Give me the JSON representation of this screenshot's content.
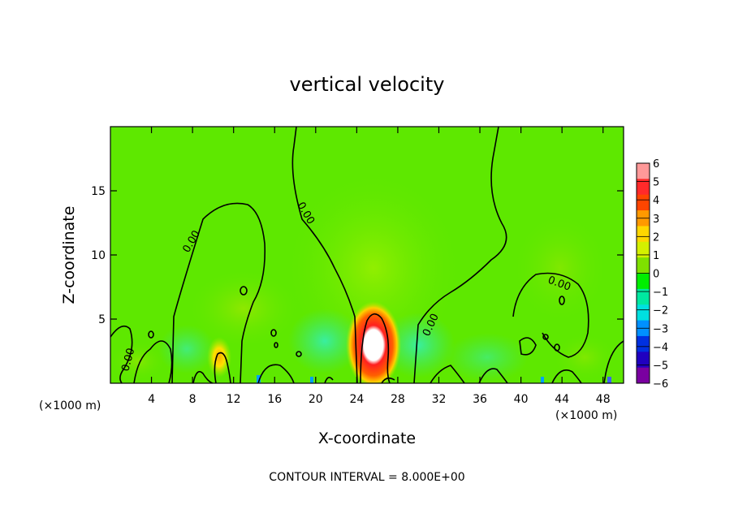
{
  "chart_data": {
    "type": "heatmap",
    "title": "vertical velocity",
    "xlabel": "X-coordinate",
    "ylabel": "Z-coordinate",
    "x_unit_label": "(×1000 m)",
    "x_unit_label_right": "(×1000 m)",
    "footnote": "CONTOUR INTERVAL = 8.000E+00",
    "xlim": [
      0,
      50
    ],
    "ylim": [
      0,
      20
    ],
    "x_ticks": [
      4,
      8,
      12,
      16,
      20,
      24,
      28,
      32,
      36,
      40,
      44,
      48
    ],
    "y_ticks": [
      5,
      10,
      15
    ],
    "colorbar": {
      "levels": [
        6,
        5,
        4,
        3,
        2,
        1,
        0,
        -1,
        -2,
        -3,
        -4,
        -5,
        -6
      ],
      "colors": [
        "#ff9999",
        "#ff2a2a",
        "#ff4500",
        "#ff9900",
        "#ffd700",
        "#d4f000",
        "#7fe000",
        "#00ee00",
        "#00e8a0",
        "#00e0e0",
        "#0090ff",
        "#0030e0",
        "#2000c0",
        "#7a00a0"
      ]
    },
    "contour_labels": [
      "0.00",
      "0.00",
      "0.00",
      "0.00",
      "0.00"
    ],
    "features": [
      {
        "name": "strong updraft",
        "x": 25.5,
        "z": 2.5,
        "value": 6
      },
      {
        "name": "weak updraft",
        "x": 10.8,
        "z": 1.5,
        "value": 3
      }
    ]
  }
}
